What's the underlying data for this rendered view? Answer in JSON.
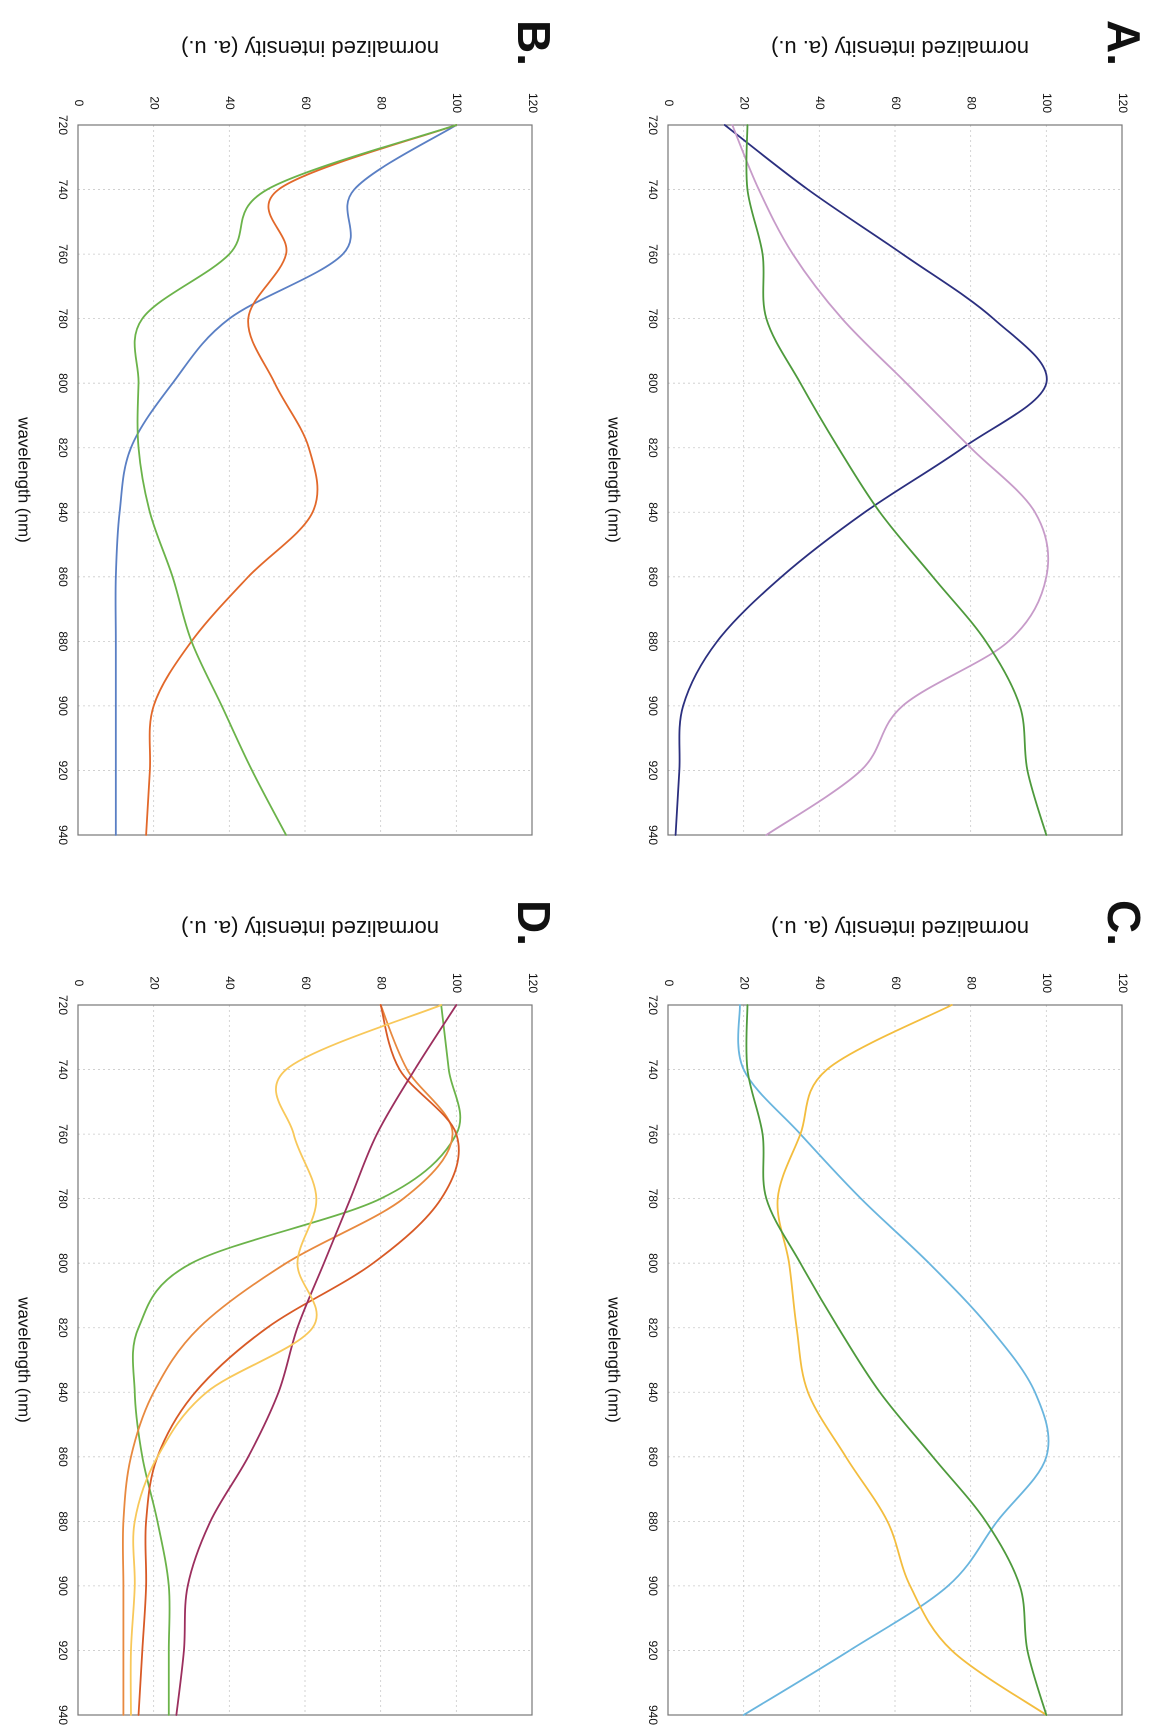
{
  "chart_data": [
    {
      "type": "line",
      "panel_label": "A.",
      "ylabel": "normalized intensity (a. u.)",
      "xlabel": "wavelength (nm)",
      "xlim": [
        720,
        940
      ],
      "ylim": [
        0,
        120
      ],
      "x_ticks": [
        720,
        740,
        760,
        780,
        800,
        820,
        840,
        860,
        880,
        900,
        920,
        940
      ],
      "y_ticks": [
        0,
        20,
        40,
        60,
        80,
        100,
        120
      ],
      "grid": true,
      "x": [
        720,
        740,
        760,
        780,
        800,
        820,
        840,
        860,
        880,
        900,
        920,
        940
      ],
      "series": [
        {
          "color": "#2b2f7f",
          "values": [
            15,
            37,
            62,
            86,
            100,
            78,
            52,
            30,
            13,
            4,
            3,
            2
          ]
        },
        {
          "color": "#c79bc9",
          "values": [
            17,
            24,
            33,
            46,
            63,
            80,
            97,
            100,
            90,
            62,
            51,
            26
          ]
        },
        {
          "color": "#4e9a3c",
          "values": [
            21,
            21,
            25,
            26,
            35,
            45,
            56,
            70,
            84,
            93,
            95,
            100
          ]
        }
      ]
    },
    {
      "type": "line",
      "panel_label": "B.",
      "ylabel": "normalized intensity (a. u.)",
      "xlabel": "wavelength (nm)",
      "xlim": [
        720,
        940
      ],
      "ylim": [
        0,
        120
      ],
      "x_ticks": [
        720,
        740,
        760,
        780,
        800,
        820,
        840,
        860,
        880,
        900,
        920,
        940
      ],
      "y_ticks": [
        0,
        20,
        40,
        60,
        80,
        100,
        120
      ],
      "grid": true,
      "x": [
        720,
        740,
        760,
        780,
        800,
        820,
        840,
        860,
        880,
        900,
        920,
        940
      ],
      "series": [
        {
          "color": "#5a7fc4",
          "values": [
            100,
            73,
            70,
            40,
            25,
            14,
            11,
            10,
            10,
            10,
            10,
            10
          ]
        },
        {
          "color": "#e2682a",
          "values": [
            100,
            53,
            55,
            45,
            52,
            61,
            62,
            45,
            30,
            20,
            19,
            18
          ]
        },
        {
          "color": "#6bb34a",
          "values": [
            100,
            50,
            40,
            17,
            16,
            16,
            19,
            25,
            30,
            38,
            46,
            55
          ]
        }
      ]
    },
    {
      "type": "line",
      "panel_label": "C.",
      "ylabel": "normalized intensity (a. u.)",
      "xlabel": "wavelength (nm)",
      "xlim": [
        720,
        940
      ],
      "ylim": [
        0,
        120
      ],
      "x_ticks": [
        720,
        740,
        760,
        780,
        800,
        820,
        840,
        860,
        880,
        900,
        920,
        940
      ],
      "y_ticks": [
        0,
        20,
        40,
        60,
        80,
        100,
        120
      ],
      "grid": true,
      "x": [
        720,
        740,
        760,
        780,
        800,
        820,
        840,
        860,
        880,
        900,
        920,
        940
      ],
      "series": [
        {
          "color": "#69b5de",
          "values": [
            19,
            20,
            35,
            51,
            69,
            85,
            97,
            100,
            87,
            74,
            48,
            20
          ]
        },
        {
          "color": "#f3bd3e",
          "values": [
            75,
            42,
            35,
            29,
            32,
            34,
            37,
            47,
            58,
            64,
            75,
            100
          ]
        },
        {
          "color": "#4e9a3c",
          "values": [
            21,
            21,
            25,
            26,
            35,
            45,
            56,
            70,
            84,
            93,
            95,
            100
          ]
        }
      ]
    },
    {
      "type": "line",
      "panel_label": "D.",
      "ylabel": "normalized intensity (a. u.)",
      "xlabel": "wavelength (nm)",
      "xlim": [
        720,
        940
      ],
      "ylim": [
        0,
        120
      ],
      "x_ticks": [
        720,
        740,
        760,
        780,
        800,
        820,
        840,
        860,
        880,
        900,
        920,
        940
      ],
      "y_ticks": [
        0,
        20,
        40,
        60,
        80,
        100,
        120
      ],
      "grid": true,
      "x": [
        720,
        740,
        760,
        780,
        800,
        820,
        840,
        860,
        880,
        900,
        920,
        940
      ],
      "series": [
        {
          "color": "#6bb34a",
          "values": [
            96,
            98,
            100,
            80,
            30,
            16,
            15,
            17,
            21,
            24,
            24,
            24
          ]
        },
        {
          "color": "#e8893f",
          "values": [
            80,
            87,
            99,
            86,
            55,
            32,
            20,
            14,
            12,
            12,
            12,
            12
          ]
        },
        {
          "color": "#d85a26",
          "values": [
            80,
            85,
            100,
            96,
            78,
            50,
            31,
            21,
            18,
            18,
            17,
            16
          ]
        },
        {
          "color": "#9c2f5e",
          "values": [
            100,
            89,
            79,
            72,
            65,
            58,
            53,
            45,
            35,
            29,
            28,
            26
          ]
        },
        {
          "color": "#f8c85a",
          "values": [
            96,
            55,
            57,
            63,
            58,
            62,
            34,
            21,
            15,
            15,
            14,
            14
          ]
        }
      ]
    }
  ]
}
